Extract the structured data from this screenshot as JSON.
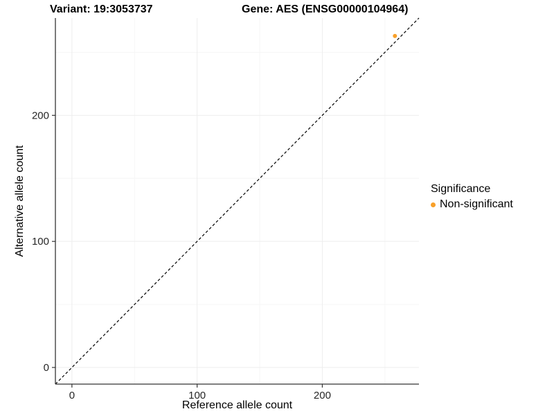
{
  "chart_data": {
    "type": "scatter",
    "titles": {
      "left": "Variant: 19:3053737",
      "right": "Gene: AES (ENSG00000104964)"
    },
    "xlabel": "Reference allele count",
    "ylabel": "Alternative allele count",
    "xlim": [
      -13.2,
      277.2
    ],
    "ylim": [
      -13.2,
      277.2
    ],
    "x_major_ticks": [
      0,
      100,
      200
    ],
    "y_major_ticks": [
      0,
      100,
      200
    ],
    "x_minor_gridlines": [
      50,
      150,
      250
    ],
    "y_minor_gridlines": [
      50,
      150,
      250
    ],
    "grid": "on",
    "points": [
      {
        "x": 258,
        "y": 263,
        "series": "Non-significant",
        "color": "#F8A029",
        "radius": 3
      }
    ],
    "identity_line": {
      "slope": 1,
      "intercept": 0,
      "style": "dashed",
      "color": "#000000"
    },
    "legend": {
      "title": "Significance",
      "position": "right",
      "entries": [
        {
          "label": "Non-significant",
          "color": "#F8A029"
        }
      ]
    },
    "colors": {
      "axis": "#333333",
      "tick_label": "#262626",
      "grid_major": "#EDEDED",
      "grid_minor": "#F6F6F6",
      "background": "#FFFFFF"
    }
  }
}
